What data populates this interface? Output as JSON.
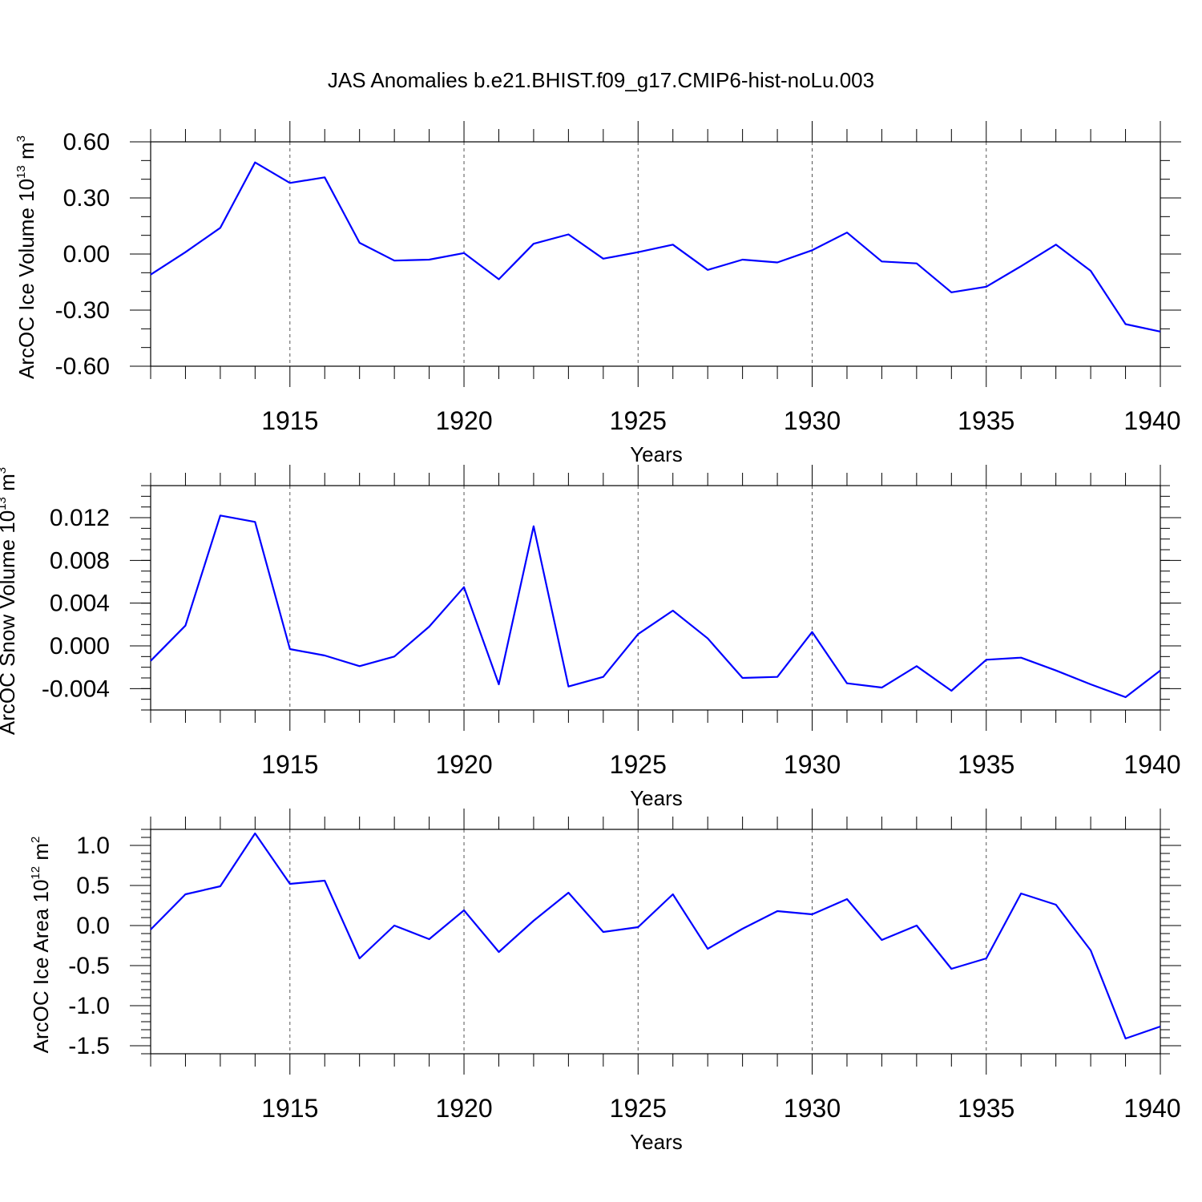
{
  "figure": {
    "title": "JAS Anomalies b.e21.BHIST.f09_g17.CMIP6-hist-noLu.003"
  },
  "colors": {
    "series": "#0000ff",
    "axes": "#000000",
    "grid": "#555555"
  },
  "chart_data": [
    {
      "type": "line",
      "title": "JAS Anomalies b.e21.BHIST.f09_g17.CMIP6-hist-noLu.003",
      "xlabel": "Years",
      "ylabel": {
        "base": "ArcOC Ice Volume 10",
        "exp": "13",
        "unit": " m",
        "unit_exp": "3"
      },
      "xlim": [
        1911,
        1940
      ],
      "ylim": [
        -0.6,
        0.6
      ],
      "x_ticks": [
        1915,
        1920,
        1925,
        1930,
        1935,
        1940
      ],
      "y_ticks": [
        -0.6,
        -0.3,
        0.0,
        0.3,
        0.6
      ],
      "y_tick_labels": [
        "-0.60",
        "-0.30",
        "0.00",
        "0.30",
        "0.60"
      ],
      "y_minor_step": 0.1,
      "grid": "vertical dashed at major x ticks",
      "x": [
        1911,
        1912,
        1913,
        1914,
        1915,
        1916,
        1917,
        1918,
        1919,
        1920,
        1921,
        1922,
        1923,
        1924,
        1925,
        1926,
        1927,
        1928,
        1929,
        1930,
        1931,
        1932,
        1933,
        1934,
        1935,
        1936,
        1937,
        1938,
        1939,
        1940
      ],
      "values": [
        -0.11,
        0.01,
        0.14,
        0.49,
        0.38,
        0.41,
        0.06,
        -0.035,
        -0.03,
        0.005,
        -0.135,
        0.055,
        0.105,
        -0.025,
        0.01,
        0.05,
        -0.085,
        -0.03,
        -0.045,
        0.02,
        0.115,
        -0.04,
        -0.05,
        -0.205,
        -0.175,
        -0.065,
        0.05,
        -0.09,
        -0.375,
        -0.415
      ]
    },
    {
      "type": "line",
      "xlabel": "Years",
      "ylabel": {
        "base": "ArcOC Snow Volume 10",
        "exp": "13",
        "unit": " m",
        "unit_exp": "3"
      },
      "xlim": [
        1911,
        1940
      ],
      "ylim": [
        -0.006,
        0.015
      ],
      "x_ticks": [
        1915,
        1920,
        1925,
        1930,
        1935,
        1940
      ],
      "y_ticks": [
        -0.004,
        0.0,
        0.004,
        0.008,
        0.012
      ],
      "y_tick_labels": [
        "-0.004",
        "0.000",
        "0.004",
        "0.008",
        "0.012"
      ],
      "y_minor_step": 0.001,
      "grid": "vertical dashed at major x ticks",
      "x": [
        1911,
        1912,
        1913,
        1914,
        1915,
        1916,
        1917,
        1918,
        1919,
        1920,
        1921,
        1922,
        1923,
        1924,
        1925,
        1926,
        1927,
        1928,
        1929,
        1930,
        1931,
        1932,
        1933,
        1934,
        1935,
        1936,
        1937,
        1938,
        1939,
        1940
      ],
      "values": [
        -0.0014,
        0.0019,
        0.0122,
        0.0116,
        -0.0003,
        -0.0009,
        -0.0019,
        -0.001,
        0.0018,
        0.0055,
        -0.0036,
        0.0112,
        -0.0038,
        -0.0029,
        0.0011,
        0.0033,
        0.0007,
        -0.003,
        -0.0029,
        0.0013,
        -0.0035,
        -0.0039,
        -0.0019,
        -0.0042,
        -0.0013,
        -0.0011,
        -0.0023,
        -0.0036,
        -0.0048,
        -0.0023
      ]
    },
    {
      "type": "line",
      "xlabel": "Years",
      "ylabel": {
        "base": "ArcOC Ice Area 10",
        "exp": "12",
        "unit": " m",
        "unit_exp": "2"
      },
      "xlim": [
        1911,
        1940
      ],
      "ylim": [
        -1.6,
        1.2
      ],
      "x_ticks": [
        1915,
        1920,
        1925,
        1930,
        1935,
        1940
      ],
      "y_ticks": [
        -1.5,
        -1.0,
        -0.5,
        0.0,
        0.5,
        1.0
      ],
      "y_tick_labels": [
        "-1.5",
        "-1.0",
        "-0.5",
        "0.0",
        "0.5",
        "1.0"
      ],
      "y_minor_step": 0.1,
      "grid": "vertical dashed at major x ticks",
      "x": [
        1911,
        1912,
        1913,
        1914,
        1915,
        1916,
        1917,
        1918,
        1919,
        1920,
        1921,
        1922,
        1923,
        1924,
        1925,
        1926,
        1927,
        1928,
        1929,
        1930,
        1931,
        1932,
        1933,
        1934,
        1935,
        1936,
        1937,
        1938,
        1939,
        1940
      ],
      "values": [
        -0.05,
        0.39,
        0.49,
        1.15,
        0.52,
        0.56,
        -0.41,
        0.0,
        -0.17,
        0.19,
        -0.33,
        0.06,
        0.41,
        -0.08,
        -0.02,
        0.39,
        -0.29,
        -0.04,
        0.18,
        0.14,
        0.33,
        -0.18,
        0.0,
        -0.54,
        -0.41,
        0.4,
        0.26,
        -0.31,
        -1.41,
        -1.26
      ]
    }
  ]
}
